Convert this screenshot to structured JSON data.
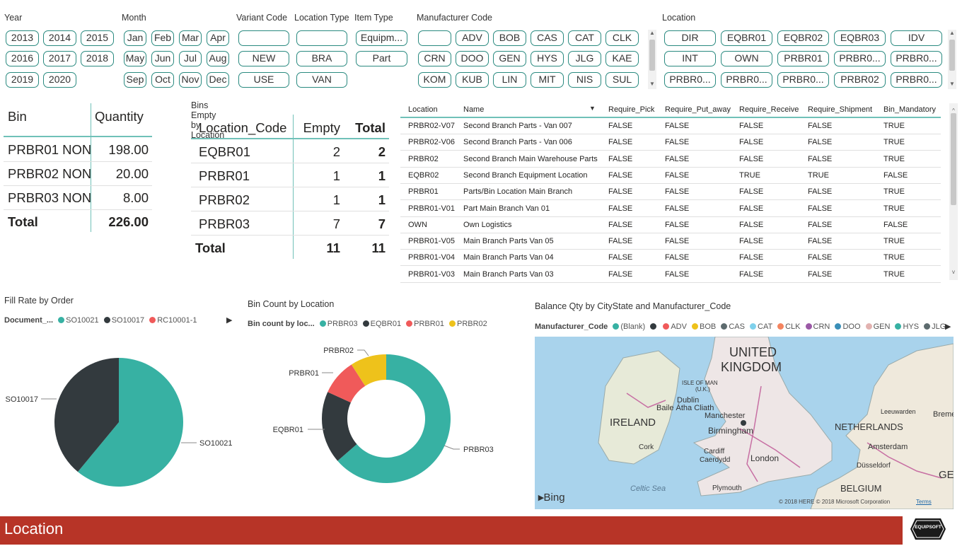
{
  "slicers": {
    "year": {
      "label": "Year",
      "items": [
        "2013",
        "2014",
        "2015",
        "2016",
        "2017",
        "2018",
        "2019",
        "2020"
      ]
    },
    "month": {
      "label": "Month",
      "items": [
        "Jan",
        "Feb",
        "Mar",
        "Apr",
        "May",
        "Jun",
        "Jul",
        "Aug",
        "Sep",
        "Oct",
        "Nov",
        "Dec"
      ]
    },
    "variant_code": {
      "label": "Variant Code",
      "items": [
        "",
        "NEW",
        "USE"
      ]
    },
    "location_type": {
      "label": "Location Type",
      "items": [
        "",
        "BRA",
        "VAN"
      ]
    },
    "item_type": {
      "label": "Item Type",
      "items": [
        "Equipm...",
        "Part"
      ]
    },
    "manufacturer_code": {
      "label": "Manufacturer Code",
      "items": [
        "",
        "ADV",
        "BOB",
        "CAS",
        "CAT",
        "CLK",
        "CRN",
        "DOO",
        "GEN",
        "HYS",
        "JLG",
        "KAE",
        "KOM",
        "KUB",
        "LIN",
        "MIT",
        "NIS",
        "SUL"
      ]
    },
    "location": {
      "label": "Location",
      "items": [
        "DIR",
        "EQBR01",
        "EQBR02",
        "EQBR03",
        "IDV",
        "INT",
        "OWN",
        "PRBR01",
        "PRBR0...",
        "PRBR0...",
        "PRBR0...",
        "PRBR0...",
        "PRBR0...",
        "PRBR02",
        "PRBR0..."
      ]
    }
  },
  "bin_table": {
    "headers": [
      "Bin",
      "Quantity"
    ],
    "rows": [
      [
        "PRBR01 NON",
        "198.00"
      ],
      [
        "PRBR02 NON",
        "20.00"
      ],
      [
        "PRBR03 NON",
        "8.00"
      ]
    ],
    "total": [
      "Total",
      "226.00"
    ]
  },
  "bins_empty": {
    "title": "Bins Empty by Location",
    "headers": [
      "Location_Code",
      "Empty",
      "Total"
    ],
    "rows": [
      [
        "EQBR01",
        "2",
        "2"
      ],
      [
        "PRBR01",
        "1",
        "1"
      ],
      [
        "PRBR02",
        "1",
        "1"
      ],
      [
        "PRBR03",
        "7",
        "7"
      ]
    ],
    "total": [
      "Total",
      "11",
      "11"
    ]
  },
  "location_table": {
    "headers": [
      "Location",
      "Name",
      "Require_Pick",
      "Require_Put_away",
      "Require_Receive",
      "Require_Shipment",
      "Bin_Mandatory"
    ],
    "rows": [
      [
        "PRBR02-V07",
        "Second Branch Parts - Van 007",
        "FALSE",
        "FALSE",
        "FALSE",
        "FALSE",
        "TRUE"
      ],
      [
        "PRBR02-V06",
        "Second Branch Parts - Van 006",
        "FALSE",
        "FALSE",
        "FALSE",
        "FALSE",
        "TRUE"
      ],
      [
        "PRBR02",
        "Second Branch Main Warehouse Parts",
        "FALSE",
        "FALSE",
        "FALSE",
        "FALSE",
        "TRUE"
      ],
      [
        "EQBR02",
        "Second Branch Equipment Location",
        "FALSE",
        "FALSE",
        "TRUE",
        "TRUE",
        "FALSE"
      ],
      [
        "PRBR01",
        "Parts/Bin Location Main Branch",
        "FALSE",
        "FALSE",
        "FALSE",
        "FALSE",
        "TRUE"
      ],
      [
        "PRBR01-V01",
        "Part Main Branch Van 01",
        "FALSE",
        "FALSE",
        "FALSE",
        "FALSE",
        "TRUE"
      ],
      [
        "OWN",
        "Own Logistics",
        "FALSE",
        "FALSE",
        "FALSE",
        "FALSE",
        "FALSE"
      ],
      [
        "PRBR01-V05",
        "Main Branch Parts Van 05",
        "FALSE",
        "FALSE",
        "FALSE",
        "FALSE",
        "TRUE"
      ],
      [
        "PRBR01-V04",
        "Main Branch Parts Van 04",
        "FALSE",
        "FALSE",
        "FALSE",
        "FALSE",
        "TRUE"
      ],
      [
        "PRBR01-V03",
        "Main Branch Parts Van 03",
        "FALSE",
        "FALSE",
        "FALSE",
        "FALSE",
        "TRUE"
      ]
    ]
  },
  "fill_rate": {
    "title": "Fill Rate by Order",
    "legend_title": "Document_...",
    "legend": [
      {
        "name": "SO10021",
        "color": "#37b1a3"
      },
      {
        "name": "SO10017",
        "color": "#333a3e"
      },
      {
        "name": "RC10001-1",
        "color": "#f05a5a"
      }
    ]
  },
  "bin_count": {
    "title": "Bin Count by Location",
    "legend_title": "Bin count by loc...",
    "legend": [
      {
        "name": "PRBR03",
        "color": "#37b1a3"
      },
      {
        "name": "EQBR01",
        "color": "#333a3e"
      },
      {
        "name": "PRBR01",
        "color": "#f05a5a"
      },
      {
        "name": "PRBR02",
        "color": "#eec21b"
      }
    ]
  },
  "chart_data": [
    {
      "type": "pie",
      "title": "Fill Rate by Order",
      "labels": [
        "SO10021",
        "SO10017",
        "RC10001-1"
      ],
      "values": [
        61,
        39,
        0
      ],
      "colors": [
        "#37b1a3",
        "#333a3e",
        "#f05a5a"
      ]
    },
    {
      "type": "pie",
      "title": "Bin Count by Location",
      "donut": true,
      "labels": [
        "PRBR03",
        "EQBR01",
        "PRBR01",
        "PRBR02"
      ],
      "values": [
        7,
        2,
        1,
        1
      ],
      "colors": [
        "#37b1a3",
        "#333a3e",
        "#f05a5a",
        "#eec21b"
      ]
    }
  ],
  "map": {
    "title": "Balance Qty by CityState and Manufacturer_Code",
    "legend_title": "Manufacturer_Code",
    "legend": [
      {
        "name": "(Blank)",
        "color": "#37b1a3"
      },
      {
        "name": "",
        "color": "#333a3e"
      },
      {
        "name": "ADV",
        "color": "#f05a5a"
      },
      {
        "name": "BOB",
        "color": "#eec21b"
      },
      {
        "name": "CAS",
        "color": "#5d6b6e"
      },
      {
        "name": "CAT",
        "color": "#7fd1ec"
      },
      {
        "name": "CLK",
        "color": "#f4845f"
      },
      {
        "name": "CRN",
        "color": "#9b59a6"
      },
      {
        "name": "DOO",
        "color": "#3a8fb8"
      },
      {
        "name": "GEN",
        "color": "#e2b2b0"
      },
      {
        "name": "HYS",
        "color": "#37b1a3"
      },
      {
        "name": "JLG",
        "color": "#5d6b6e"
      }
    ],
    "places": [
      "UNITED",
      "KINGDOM",
      "IRELAND",
      "NETHERLANDS",
      "BELGIUM",
      "GERM",
      "ISLE OF MAN",
      "(U.K.)",
      "Dublin",
      "Baile Átha Cliath",
      "Manchester",
      "Birmingham",
      "Cork",
      "Cardiff",
      "Caerdydd",
      "London",
      "Plymouth",
      "Celtic Sea",
      "Leeuwarden",
      "Breme",
      "Amsterdam",
      "Düsseldorf"
    ],
    "attribution": "© 2018 HERE © 2018 Microsoft Corporation",
    "terms": "Terms",
    "bing": "Bing"
  },
  "footer": {
    "title": "Location",
    "logo": "EQUIPSOFT"
  }
}
